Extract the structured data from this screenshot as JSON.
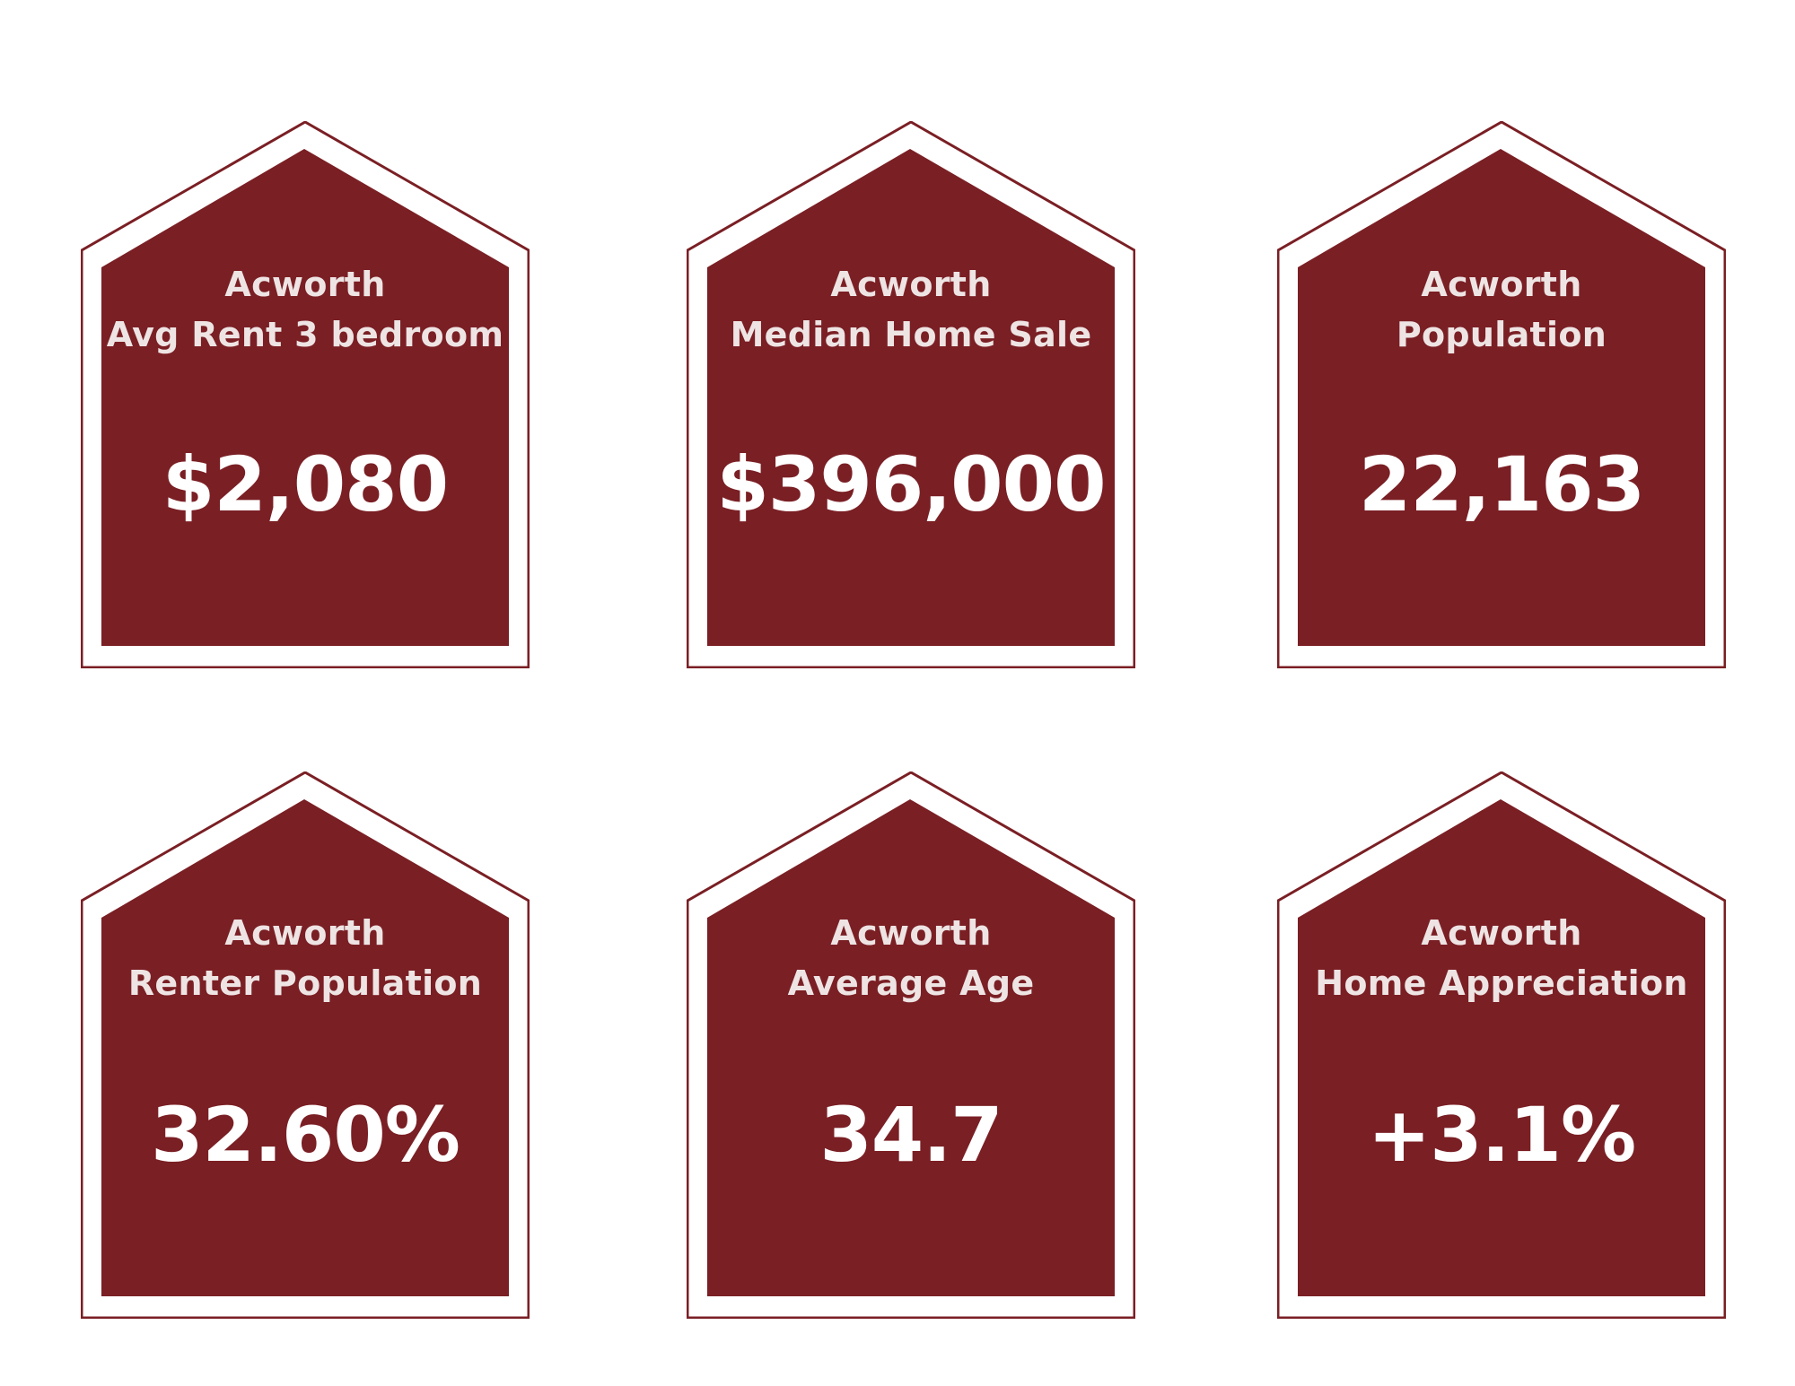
{
  "colors": {
    "house_fill": "#7a1f24",
    "house_outline": "#7a1f24",
    "text_label": "#eee4e4",
    "text_value": "#ffffff",
    "background": "#ffffff"
  },
  "cards": [
    {
      "city": "Acworth",
      "metric": "Avg Rent 3 bedroom",
      "value": "$2,080",
      "icon": "house-shape"
    },
    {
      "city": "Acworth",
      "metric": "Median Home Sale",
      "value": "$396,000",
      "icon": "house-shape"
    },
    {
      "city": "Acworth",
      "metric": "Population",
      "value": "22,163",
      "icon": "house-shape"
    },
    {
      "city": "Acworth",
      "metric": "Renter Population",
      "value": "32.60%",
      "icon": "house-shape"
    },
    {
      "city": "Acworth",
      "metric": "Average Age",
      "value": "34.7",
      "icon": "house-shape"
    },
    {
      "city": "Acworth",
      "metric": "Home Appreciation",
      "value": "+3.1%",
      "icon": "house-shape"
    }
  ]
}
